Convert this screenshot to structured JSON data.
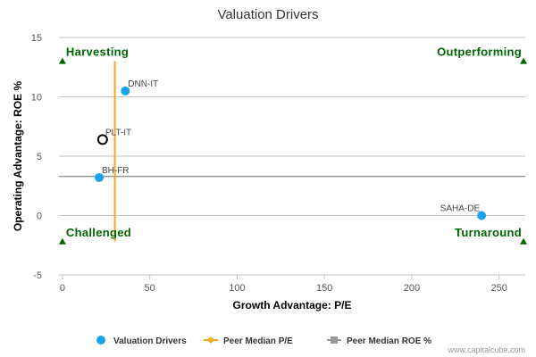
{
  "chart_data": {
    "type": "scatter",
    "title": "Valuation Drivers",
    "xlabel": "Growth Advantage: P/E",
    "ylabel": "Operating Advantage: ROE %",
    "xlim": [
      -2,
      265
    ],
    "ylim": [
      -5,
      15
    ],
    "x_ticks": [
      0,
      50,
      100,
      150,
      200,
      250
    ],
    "y_ticks": [
      -5,
      0,
      5,
      10,
      15
    ],
    "points": [
      {
        "label": "DNN-IT",
        "x": 36,
        "y": 10.5,
        "style": "filled"
      },
      {
        "label": "PLT-IT",
        "x": 23,
        "y": 6.4,
        "style": "hollow"
      },
      {
        "label": "BH-FR",
        "x": 21,
        "y": 3.2,
        "style": "filled"
      },
      {
        "label": "SAHA-DE",
        "x": 240,
        "y": 0,
        "style": "filled"
      }
    ],
    "peer_median_pe": {
      "x": 30,
      "y_range": [
        -2.2,
        13
      ]
    },
    "peer_median_roe": {
      "y": 3.3,
      "x_range": [
        -2,
        265
      ]
    },
    "quadrants": [
      {
        "label": "Harvesting",
        "x": 0,
        "y": 13,
        "anchor": "start",
        "text_side": "above"
      },
      {
        "label": "Outperforming",
        "x": 264,
        "y": 13,
        "anchor": "end",
        "text_side": "above"
      },
      {
        "label": "Challenged",
        "x": 0,
        "y": -2.2,
        "anchor": "start",
        "text_side": "above"
      },
      {
        "label": "Turnaround",
        "x": 264,
        "y": -2.2,
        "anchor": "end",
        "text_side": "above"
      }
    ],
    "legend": {
      "placement": "bottom",
      "items": [
        {
          "name": "Valuation Drivers",
          "type": "circle"
        },
        {
          "name": "Peer Median P/E",
          "type": "line-diamond"
        },
        {
          "name": "Peer Median ROE %",
          "type": "line-square"
        }
      ]
    },
    "colors": {
      "point": "#1aa3e8",
      "hollow_stroke": "#000000",
      "pe_line": "#f5a623",
      "roe_line": "#999999",
      "quadrant": "#006400",
      "grid": "#c0c0c0"
    },
    "credit": "www.capitalcube.com"
  }
}
